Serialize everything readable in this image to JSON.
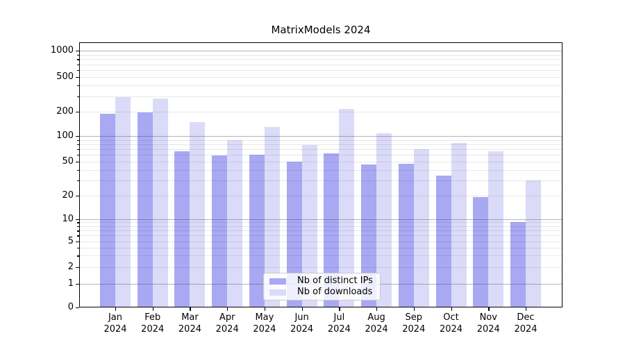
{
  "title": "MatrixModels 2024",
  "chart_data": {
    "type": "bar",
    "categories": [
      "Jan",
      "Feb",
      "Mar",
      "Apr",
      "May",
      "Jun",
      "Jul",
      "Aug",
      "Sep",
      "Oct",
      "Nov",
      "Dec"
    ],
    "year_label": "2024",
    "series": [
      {
        "name": "Nb of distinct IPs",
        "color": "#a8a8f3",
        "values": [
          188,
          196,
          66,
          59,
          60,
          50,
          62,
          46,
          47,
          34,
          19,
          9
        ]
      },
      {
        "name": "Nb of downloads",
        "color": "#dbdbf9",
        "values": [
          290,
          280,
          148,
          89,
          128,
          78,
          215,
          108,
          70,
          83,
          66,
          30
        ]
      }
    ],
    "title": "MatrixModels 2024",
    "xlabel": "",
    "ylabel": "",
    "yscale": "symlog",
    "ylim": [
      0,
      1000
    ],
    "y_ticks": [
      0,
      1,
      2,
      5,
      10,
      20,
      50,
      100,
      200,
      500,
      1000
    ],
    "grid": true,
    "legend_position": "lower-center",
    "legend_entries": [
      "Nb of distinct IPs",
      "Nb of downloads"
    ]
  }
}
